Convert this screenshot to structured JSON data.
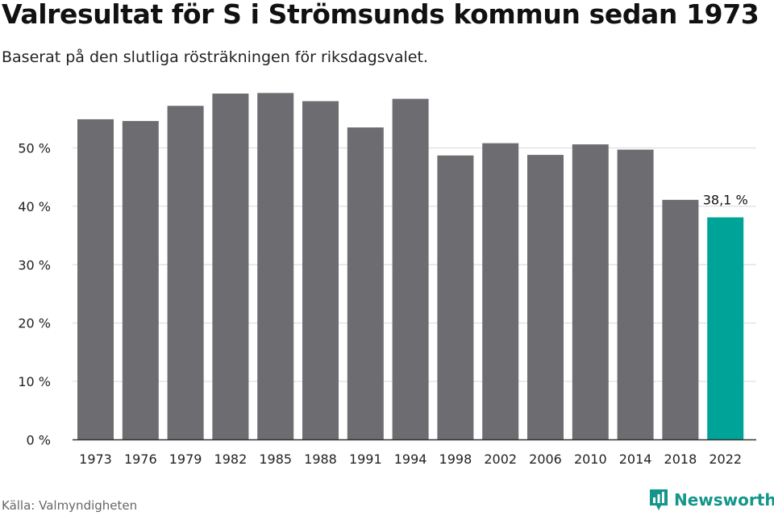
{
  "title": "Valresultat för S i Strömsunds kommun sedan 1973",
  "subtitle": "Baserat på den slutliga rösträkningen för riksdagsvalet.",
  "source": "Källa: Valmyndigheten",
  "brand": {
    "name": "Newsworthy",
    "icon": "newsworthy-logo-icon",
    "color": "#14968a"
  },
  "chart_data": {
    "type": "bar",
    "categories": [
      "1973",
      "1976",
      "1979",
      "1982",
      "1985",
      "1988",
      "1991",
      "1994",
      "1998",
      "2002",
      "2006",
      "2010",
      "2014",
      "2018",
      "2022"
    ],
    "values": [
      54.9,
      54.6,
      57.2,
      59.3,
      59.4,
      58.0,
      53.5,
      58.4,
      48.7,
      50.8,
      48.8,
      50.6,
      49.7,
      41.1,
      38.1
    ],
    "ylim": [
      0,
      60
    ],
    "yticks": [
      0,
      10,
      20,
      30,
      40,
      50
    ],
    "ytick_labels": [
      "0 %",
      "10 %",
      "20 %",
      "30 %",
      "40 %",
      "50 %"
    ],
    "data_labels": [
      {
        "index": 14,
        "text": "38,1 %"
      }
    ],
    "grid": true,
    "colors": {
      "bar": "#6d6c71",
      "highlight": "#00a398",
      "grid": "#dddddd",
      "axis": "#333333"
    },
    "highlight_index": 14
  }
}
